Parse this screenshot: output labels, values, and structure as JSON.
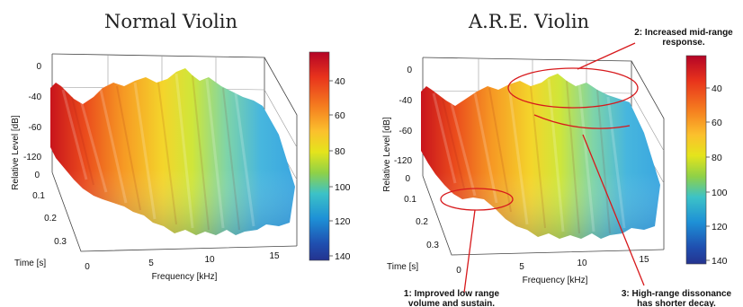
{
  "colors": {
    "scale": [
      "#b40426",
      "#e8331c",
      "#f57d1f",
      "#fbc02d",
      "#e4e41c",
      "#8fd147",
      "#3cc2c7",
      "#1e90d6",
      "#1f4fb0",
      "#24338f"
    ],
    "annotation": "#d7191c"
  },
  "chart_data": [
    {
      "type": "surface",
      "title": "Normal Violin",
      "xlabel": "Frequency [kHz]",
      "ylabel": "Time [s]",
      "zlabel": "Relative Level [dB]",
      "x_ticks": [
        "0",
        "5",
        "10",
        "15"
      ],
      "y_ticks": [
        "0",
        "0.1",
        "0.2",
        "0.3"
      ],
      "z_ticks": [
        "0",
        "-40",
        "-60",
        "-120"
      ],
      "colorbar_ticks": [
        "40",
        "60",
        "80",
        "100",
        "120",
        "140"
      ],
      "annotations": []
    },
    {
      "type": "surface",
      "title": "A.R.E. Violin",
      "xlabel": "Frequency [kHz]",
      "ylabel": "Time [s]",
      "zlabel": "Relative Level [dB]",
      "x_ticks": [
        "0",
        "5",
        "10",
        "15"
      ],
      "y_ticks": [
        "0",
        "0.1",
        "0.2",
        "0.3"
      ],
      "z_ticks": [
        "0",
        "-40",
        "-60",
        "-120"
      ],
      "colorbar_ticks": [
        "40",
        "60",
        "80",
        "100",
        "120",
        "140"
      ],
      "annotations": [
        {
          "line1": "1: Improved low range",
          "line2": "volume and sustain."
        },
        {
          "line1": "2: Increased mid-range",
          "line2": "response."
        },
        {
          "line1": "3: High-range dissonance",
          "line2": "has shorter decay."
        }
      ]
    }
  ]
}
